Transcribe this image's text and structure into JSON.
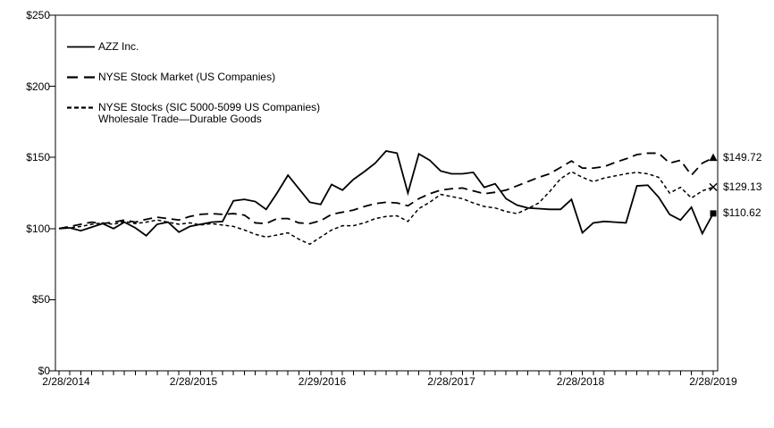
{
  "chart_data": {
    "type": "line",
    "title": "",
    "background_color": "#ffffff",
    "line_color": "#000000",
    "grid": false,
    "legend_position": "top-left-inside",
    "y_axis": {
      "min": 0,
      "max": 250,
      "tick_interval": 50,
      "tick_labels": [
        "$0",
        "$50",
        "$100",
        "$150",
        "$200",
        "$250"
      ]
    },
    "x_axis": {
      "unit": "monthly points (month-end)",
      "point_count": 61,
      "minor_tick_every": 1,
      "tick_positions": [
        0,
        12,
        24,
        36,
        48,
        60
      ],
      "tick_labels": [
        "2/28/2014",
        "2/28/2015",
        "2/29/2016",
        "2/28/2017",
        "2/28/2018",
        "2/28/2019"
      ]
    },
    "series": [
      {
        "name": "AZZ Inc.",
        "style": "solid",
        "end_marker": "square",
        "end_label": "$110.62",
        "end_value": 110.62,
        "values": [
          100,
          100.5,
          98.5,
          101,
          103.5,
          100,
          104.5,
          100.5,
          95,
          103,
          104.5,
          97.5,
          101.5,
          103,
          104.5,
          105,
          119.5,
          120.5,
          119,
          113.5,
          125,
          137.5,
          128,
          118.5,
          117,
          131,
          127,
          134.5,
          140,
          146,
          154.5,
          153,
          125,
          152.5,
          148,
          140.5,
          138.5,
          138.5,
          139.5,
          129,
          131.5,
          121,
          116.5,
          114.5,
          114,
          113.5,
          113.5,
          120.5,
          97,
          104,
          105,
          104.5,
          104,
          130,
          130.5,
          122,
          110,
          106,
          115,
          96.5,
          110.62
        ]
      },
      {
        "name": "NYSE Stock Market (US Companies)",
        "style": "long-dash",
        "end_marker": "triangle",
        "end_label": "$149.72",
        "end_value": 149.72,
        "values": [
          100,
          101.5,
          103,
          104.5,
          103.5,
          104.5,
          106,
          104.5,
          106.5,
          108,
          107,
          106,
          108.5,
          110,
          110.5,
          110,
          110.5,
          109.5,
          104,
          103.5,
          107,
          107,
          104,
          103.5,
          105.5,
          110,
          111.5,
          113,
          115.5,
          117.5,
          118.5,
          118,
          116,
          121,
          124.5,
          127,
          128,
          128.5,
          126.5,
          124.5,
          125.5,
          127,
          130,
          133,
          136,
          138.5,
          143,
          147.5,
          142.5,
          142.5,
          143.5,
          146.5,
          149,
          152,
          153,
          153,
          146,
          148,
          137.5,
          146,
          149.72
        ]
      },
      {
        "name": "NYSE Stocks (SIC 5000-5099 US Companies) Wholesale Trade—Durable Goods",
        "style": "short-dash",
        "end_marker": "x",
        "end_label": "$129.13",
        "end_value": 129.13,
        "values": [
          100,
          100.5,
          101.5,
          103,
          104,
          103,
          105,
          103.5,
          104.5,
          106,
          104.5,
          103,
          104,
          102.5,
          103.5,
          102.5,
          101.5,
          99,
          96,
          94,
          95.5,
          97,
          92.5,
          89,
          94,
          99,
          102,
          102,
          104,
          107,
          108.5,
          109,
          105,
          114,
          118.5,
          124,
          122.5,
          121,
          118,
          115.5,
          114.5,
          112,
          110.5,
          114,
          118,
          126,
          135,
          140,
          136,
          133,
          135.5,
          137,
          138.5,
          139.5,
          138.5,
          136,
          125,
          129,
          121.5,
          126.5,
          129.13
        ]
      }
    ]
  },
  "legend": {
    "items": [
      {
        "label": "AZZ Inc."
      },
      {
        "label": "NYSE Stock Market (US Companies)"
      },
      {
        "label_line1": "NYSE Stocks (SIC 5000-5099 US Companies)",
        "label_line2": "Wholesale Trade—Durable Goods"
      }
    ]
  }
}
